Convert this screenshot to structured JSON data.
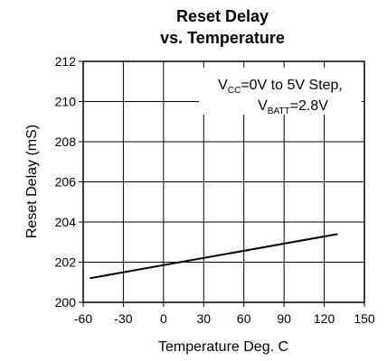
{
  "chart_data": {
    "type": "line",
    "title": "Reset Delay",
    "subtitle": "vs. Temperature",
    "xlabel": "Temperature Deg. C",
    "ylabel": "Reset Delay (mS)",
    "annotation": [
      [
        "V",
        "CC",
        "=0V to 5V Step,"
      ],
      [
        "V",
        "BATT",
        "=2.8V"
      ]
    ],
    "x": [
      -55,
      130
    ],
    "values": [
      201.2,
      203.4
    ],
    "color": "#000000",
    "xlim": [
      -60,
      150
    ],
    "xticks": [
      -60,
      -30,
      0,
      30,
      60,
      90,
      120,
      150
    ],
    "ylim": [
      200,
      212
    ],
    "yticks": [
      200,
      202,
      204,
      206,
      208,
      210,
      212
    ],
    "grid": true
  }
}
